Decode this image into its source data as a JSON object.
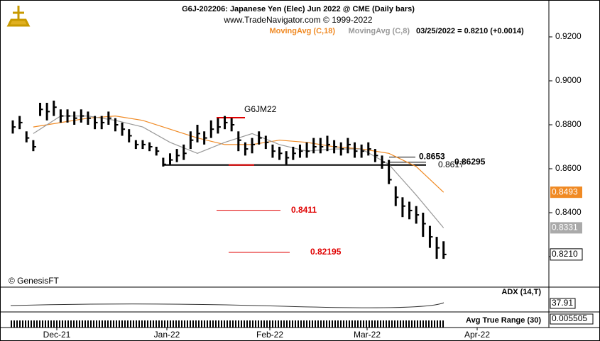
{
  "chart_data": {
    "type": "ohlc",
    "title": "G6J-202206:  Japanese Yen (Elec) Jun 2022 @ CME  (Daily bars)",
    "subtitle": "www.TradeNavigator.com © 1999-2022",
    "quote": "03/25/2022 = 0.8210 (+0.0014)",
    "symbol_label": "G6JM22",
    "credit": "© GenesisFT",
    "x_labels": [
      "Dec-21",
      "Jan-22",
      "Feb-22",
      "Mar-22",
      "Apr-22"
    ],
    "ylim": [
      0.81,
      0.935
    ],
    "yticks": [
      {
        "value": 0.92,
        "label": "0.9200"
      },
      {
        "value": 0.9,
        "label": "0.9000"
      },
      {
        "value": 0.88,
        "label": "0.8800"
      },
      {
        "value": 0.86,
        "label": "0.8600"
      },
      {
        "value": 0.84,
        "label": "0.8400"
      },
      {
        "value": 0.82,
        "label": "0.8200"
      }
    ],
    "bars": {
      "name": "G6JM22",
      "color": "#000000",
      "high": [
        0.882,
        0.884,
        0.877,
        0.873,
        0.89,
        0.89,
        0.891,
        0.887,
        0.887,
        0.886,
        0.887,
        0.886,
        0.884,
        0.884,
        0.886,
        0.883,
        0.881,
        0.878,
        0.873,
        0.873,
        0.872,
        0.87,
        0.865,
        0.867,
        0.869,
        0.871,
        0.877,
        0.88,
        0.877,
        0.882,
        0.883,
        0.884,
        0.883,
        0.877,
        0.872,
        0.874,
        0.877,
        0.875,
        0.871,
        0.87,
        0.868,
        0.87,
        0.871,
        0.872,
        0.874,
        0.874,
        0.875,
        0.873,
        0.872,
        0.874,
        0.872,
        0.871,
        0.872,
        0.869,
        0.866,
        0.864,
        0.852,
        0.847,
        0.845,
        0.843,
        0.84,
        0.834,
        0.829,
        0.827
      ],
      "low": [
        0.876,
        0.878,
        0.872,
        0.868,
        0.884,
        0.882,
        0.884,
        0.881,
        0.881,
        0.88,
        0.881,
        0.88,
        0.878,
        0.878,
        0.88,
        0.877,
        0.875,
        0.872,
        0.869,
        0.869,
        0.868,
        0.866,
        0.861,
        0.862,
        0.863,
        0.864,
        0.869,
        0.872,
        0.871,
        0.874,
        0.876,
        0.878,
        0.877,
        0.868,
        0.866,
        0.867,
        0.871,
        0.869,
        0.865,
        0.864,
        0.862,
        0.864,
        0.865,
        0.865,
        0.867,
        0.867,
        0.868,
        0.867,
        0.866,
        0.867,
        0.865,
        0.865,
        0.866,
        0.863,
        0.86,
        0.853,
        0.843,
        0.838,
        0.837,
        0.835,
        0.829,
        0.824,
        0.819,
        0.819
      ],
      "close": [
        0.879,
        0.881,
        0.874,
        0.87,
        0.887,
        0.886,
        0.888,
        0.884,
        0.884,
        0.883,
        0.884,
        0.883,
        0.881,
        0.881,
        0.883,
        0.88,
        0.878,
        0.875,
        0.871,
        0.871,
        0.87,
        0.868,
        0.862,
        0.864,
        0.866,
        0.867,
        0.873,
        0.876,
        0.874,
        0.878,
        0.879,
        0.881,
        0.88,
        0.873,
        0.869,
        0.871,
        0.874,
        0.872,
        0.868,
        0.867,
        0.865,
        0.867,
        0.868,
        0.868,
        0.87,
        0.87,
        0.871,
        0.87,
        0.869,
        0.871,
        0.868,
        0.868,
        0.869,
        0.866,
        0.863,
        0.855,
        0.847,
        0.843,
        0.841,
        0.839,
        0.835,
        0.829,
        0.824,
        0.821
      ],
      "last_label": "0.8210"
    },
    "series": [
      {
        "name": "MovingAvg (C,18)",
        "color": "#f08a24",
        "x": [
          3,
          7,
          11,
          15,
          19,
          23,
          27,
          31,
          35,
          39,
          43,
          47,
          51,
          55,
          59,
          63
        ],
        "values": [
          0.879,
          0.881,
          0.883,
          0.884,
          0.882,
          0.878,
          0.874,
          0.871,
          0.871,
          0.873,
          0.872,
          0.87,
          0.869,
          0.867,
          0.861,
          0.8493
        ]
      },
      {
        "name": "MovingAvg (C,8)",
        "color": "#999999",
        "x": [
          3,
          7,
          11,
          15,
          19,
          23,
          27,
          31,
          35,
          39,
          43,
          47,
          51,
          55,
          59,
          63
        ],
        "values": [
          0.876,
          0.884,
          0.884,
          0.882,
          0.879,
          0.872,
          0.867,
          0.872,
          0.876,
          0.871,
          0.868,
          0.869,
          0.869,
          0.862,
          0.848,
          0.8331
        ]
      }
    ],
    "levels": [
      {
        "value": 0.8653,
        "color": "#000000"
      },
      {
        "value": 0.8617,
        "color": "#000000"
      },
      {
        "value": 0.86295,
        "color": "#000000"
      },
      {
        "value": 0.8411,
        "color": "#e00000"
      },
      {
        "value": 0.82195,
        "color": "#e00000"
      }
    ],
    "indicators": [
      {
        "name": "ADX (14,T)",
        "value": 37.91
      },
      {
        "name": "Avg True Range (30)",
        "value": 0.005505
      }
    ]
  }
}
